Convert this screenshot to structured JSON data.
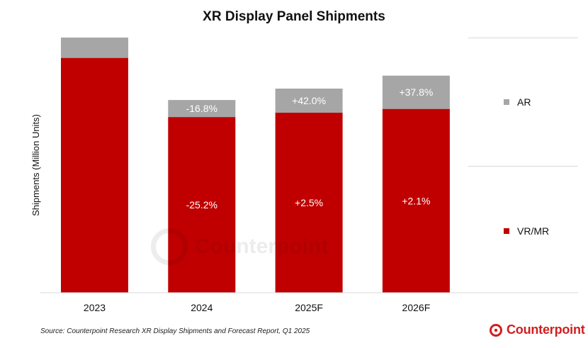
{
  "chart_data": {
    "type": "bar",
    "stacked": true,
    "title": "XR Display Panel Shipments",
    "ylabel": "Shipments (Million Units)",
    "categories": [
      "2023",
      "2024",
      "2025F",
      "2026F"
    ],
    "series": [
      {
        "name": "VR/MR",
        "color": "#c00000",
        "values": [
          92.5,
          69.2,
          70.9,
          72.4
        ],
        "labels": [
          "",
          "-25.2%",
          "+2.5%",
          "+2.1%"
        ]
      },
      {
        "name": "AR",
        "color": "#a6a6a6",
        "values": [
          8.0,
          6.7,
          9.5,
          13.1
        ],
        "labels": [
          "",
          "-16.8%",
          "+42.0%",
          "+37.8%"
        ]
      }
    ],
    "ylim": [
      0,
      100.5
    ],
    "grid": false,
    "legend_position": "right"
  },
  "source": "Source: Counterpoint Research XR Display Shipments and Forecast Report, Q1 2025",
  "logo_text": "Counterpoint",
  "watermark_text": "Counterpoint",
  "colors": {
    "brand": "#d11e1e"
  }
}
